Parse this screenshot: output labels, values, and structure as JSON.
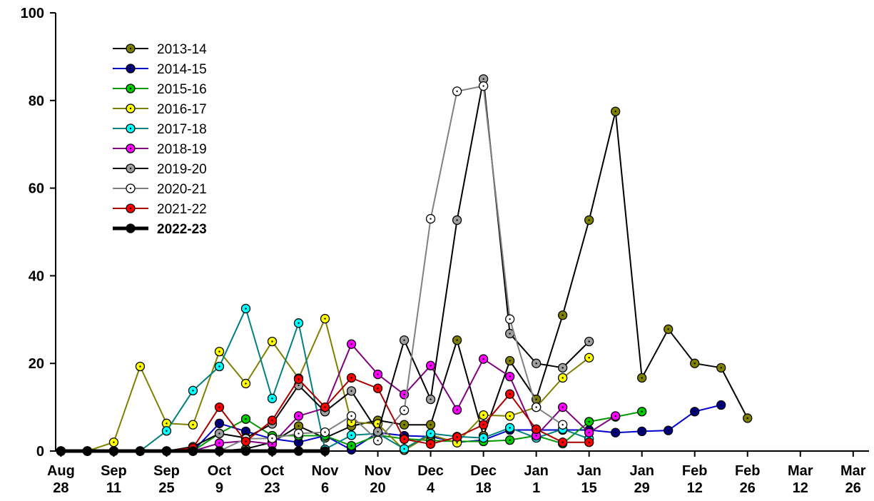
{
  "chart_data": {
    "type": "line",
    "title": "",
    "xlabel": "",
    "ylabel": "",
    "ylim": [
      0,
      100
    ],
    "y_ticks": [
      "0",
      "20",
      "40",
      "60",
      "80",
      "100"
    ],
    "x_ticks": [
      {
        "line1": "Aug",
        "line2": "28",
        "week": 0
      },
      {
        "line1": "Sep",
        "line2": "11",
        "week": 2
      },
      {
        "line1": "Sep",
        "line2": "25",
        "week": 4
      },
      {
        "line1": "Oct",
        "line2": "9",
        "week": 6
      },
      {
        "line1": "Oct",
        "line2": "23",
        "week": 8
      },
      {
        "line1": "Nov",
        "line2": "6",
        "week": 10
      },
      {
        "line1": "Nov",
        "line2": "20",
        "week": 12
      },
      {
        "line1": "Dec",
        "line2": "4",
        "week": 14
      },
      {
        "line1": "Dec",
        "line2": "18",
        "week": 16
      },
      {
        "line1": "Jan",
        "line2": "1",
        "week": 18
      },
      {
        "line1": "Jan",
        "line2": "15",
        "week": 20
      },
      {
        "line1": "Jan",
        "line2": "29",
        "week": 22
      },
      {
        "line1": "Feb",
        "line2": "12",
        "week": 24
      },
      {
        "line1": "Feb",
        "line2": "26",
        "week": 26
      },
      {
        "line1": "Mar",
        "line2": "12",
        "week": 28
      },
      {
        "line1": "Mar",
        "line2": "26",
        "week": 30
      }
    ],
    "x_range_weeks": [
      -0.2,
      30.6
    ],
    "grid": false,
    "legend_placement": "top-left",
    "series": [
      {
        "name": "2013-14",
        "line_color": "#000000",
        "marker_color": "#808000",
        "bold": false,
        "x": [
          0,
          1,
          2,
          3,
          4,
          5,
          6,
          7,
          8,
          9,
          10,
          11,
          12,
          13,
          14,
          15,
          16,
          17,
          18,
          19,
          20,
          21,
          22,
          23,
          24,
          25,
          26,
          27,
          28,
          29,
          30
        ],
        "y": [
          0,
          0,
          0,
          0,
          0,
          0,
          0,
          0.5,
          2,
          5.7,
          3,
          5.7,
          7,
          6,
          6,
          25.3,
          3.5,
          20.6,
          11.8,
          31,
          52.7,
          77.5,
          16.7,
          27.8,
          20,
          19,
          7.5,
          null,
          null,
          null,
          null
        ]
      },
      {
        "name": "2014-15",
        "line_color": "#0000cc",
        "marker_color": "#000080",
        "bold": false,
        "x": [
          0,
          1,
          2,
          3,
          4,
          5,
          6,
          7,
          8,
          9,
          10,
          11,
          12,
          13,
          14,
          15,
          16,
          17,
          18,
          19,
          20,
          21,
          22,
          23,
          24,
          25,
          26,
          27,
          28,
          29,
          30
        ],
        "y": [
          0,
          0,
          0,
          0,
          0,
          0,
          6.3,
          4.5,
          2.8,
          2,
          3.5,
          0.3,
          4.2,
          3.5,
          3.3,
          2,
          2.5,
          4.8,
          4.8,
          4.8,
          4.8,
          4.2,
          4.5,
          4.7,
          9,
          10.5,
          null,
          null,
          null,
          null,
          null
        ]
      },
      {
        "name": "2015-16",
        "line_color": "#009900",
        "marker_color": "#00cc00",
        "bold": false,
        "x": [
          0,
          1,
          2,
          3,
          4,
          5,
          6,
          7,
          8,
          9,
          10,
          11,
          12,
          13,
          14,
          15,
          16,
          17,
          18,
          19,
          20,
          21,
          22,
          23,
          24,
          25,
          26,
          27,
          28,
          29,
          30
        ],
        "y": [
          0,
          0,
          0,
          0,
          0,
          0,
          4,
          7.3,
          3.5,
          3.5,
          3.5,
          1.2,
          3.6,
          2.8,
          2.4,
          2.2,
          2.2,
          2.5,
          3.5,
          1.7,
          6.7,
          7.8,
          9,
          null,
          null,
          null,
          null,
          null,
          null,
          null,
          null
        ]
      },
      {
        "name": "2016-17",
        "line_color": "#808000",
        "marker_color": "#ffff00",
        "bold": false,
        "x": [
          0,
          1,
          2,
          3,
          4,
          5,
          6,
          7,
          8,
          9,
          10,
          11,
          12,
          13,
          14,
          15,
          16,
          17,
          18,
          19,
          20,
          21,
          22,
          23,
          24,
          25,
          26,
          27,
          28,
          29,
          30
        ],
        "y": [
          0,
          0,
          2,
          19.3,
          6.3,
          6,
          22.7,
          15.4,
          25,
          16.6,
          30.2,
          6.6,
          6.2,
          0.2,
          3.7,
          1.9,
          8.2,
          8,
          10,
          16.7,
          21.3,
          null,
          null,
          null,
          null,
          null,
          null,
          null,
          null,
          null,
          null
        ]
      },
      {
        "name": "2017-18",
        "line_color": "#008080",
        "marker_color": "#00ffff",
        "bold": false,
        "x": [
          0,
          1,
          2,
          3,
          4,
          5,
          6,
          7,
          8,
          9,
          10,
          11,
          12,
          13,
          14,
          15,
          16,
          17,
          18,
          19,
          20,
          21,
          22,
          23,
          24,
          25,
          26,
          27,
          28,
          29,
          30
        ],
        "y": [
          0,
          0,
          0,
          0,
          4.6,
          13.8,
          19.3,
          32.5,
          12,
          29.2,
          0.4,
          3.6,
          4,
          0.5,
          4,
          3.3,
          3,
          5.3,
          3,
          5,
          2.8,
          null,
          null,
          null,
          null,
          null,
          null,
          null,
          null,
          null,
          null
        ]
      },
      {
        "name": "2018-19",
        "line_color": "#800080",
        "marker_color": "#ff00ff",
        "bold": false,
        "x": [
          0,
          1,
          2,
          3,
          4,
          5,
          6,
          7,
          8,
          9,
          10,
          11,
          12,
          13,
          14,
          15,
          16,
          17,
          18,
          19,
          20,
          21,
          22,
          23,
          24,
          25,
          26,
          27,
          28,
          29,
          30
        ],
        "y": [
          0,
          0,
          0,
          0,
          0,
          0,
          1.8,
          2.3,
          1.6,
          8,
          9.8,
          24.4,
          17.5,
          12.9,
          19.5,
          9.4,
          21,
          17,
          3.5,
          10,
          4.2,
          8,
          null,
          null,
          null,
          null,
          null,
          null,
          null,
          null,
          null
        ]
      },
      {
        "name": "2019-20",
        "line_color": "#000000",
        "marker_color": "#a0a0a0",
        "bold": false,
        "x": [
          0,
          1,
          2,
          3,
          4,
          5,
          6,
          7,
          8,
          9,
          10,
          11,
          12,
          13,
          14,
          15,
          16,
          17,
          18,
          19,
          20,
          21,
          22,
          23,
          24,
          25,
          26,
          27,
          28,
          29,
          30
        ],
        "y": [
          0,
          0,
          0,
          0,
          0,
          1,
          4,
          3,
          6.2,
          15,
          9,
          13.7,
          4.4,
          25.3,
          11.8,
          52.7,
          84.9,
          26.8,
          20,
          19,
          25,
          null,
          null,
          null,
          null,
          null,
          null,
          null,
          null,
          null,
          null
        ]
      },
      {
        "name": "2020-21",
        "line_color": "#808080",
        "marker_color": "#ffffff",
        "bold": false,
        "x": [
          0,
          1,
          2,
          3,
          4,
          5,
          6,
          7,
          8,
          9,
          10,
          11,
          12,
          13,
          14,
          15,
          16,
          17,
          18,
          19,
          20,
          21,
          22,
          23,
          24,
          25,
          26,
          27,
          28,
          29,
          30
        ],
        "y": [
          0,
          0,
          0,
          0,
          0,
          0.2,
          0,
          2.8,
          2.9,
          4,
          4.3,
          8,
          2.4,
          9.3,
          53,
          82.1,
          83.3,
          30.1,
          10,
          6,
          null,
          null,
          null,
          null,
          null,
          null,
          null,
          null,
          null,
          null,
          null
        ]
      },
      {
        "name": "2021-22",
        "line_color": "#aa0000",
        "marker_color": "#ff0000",
        "bold": false,
        "x": [
          0,
          1,
          2,
          3,
          4,
          5,
          6,
          7,
          8,
          9,
          10,
          11,
          12,
          13,
          14,
          15,
          16,
          17,
          18,
          19,
          20,
          21,
          22,
          23,
          24,
          25,
          26,
          27,
          28,
          29,
          30
        ],
        "y": [
          0,
          0,
          0,
          0,
          0,
          0.7,
          10,
          2.2,
          7,
          16.4,
          10,
          16.7,
          14.3,
          2.7,
          1.6,
          3.2,
          6,
          13,
          5,
          2,
          2,
          null,
          null,
          null,
          null,
          null,
          null,
          null,
          null,
          null,
          null
        ]
      },
      {
        "name": "2022-23",
        "line_color": "#000000",
        "marker_color": "#000000",
        "bold": true,
        "x": [
          0,
          1,
          2,
          3,
          4,
          5,
          6,
          7,
          8,
          9,
          10,
          11,
          12,
          13,
          14,
          15,
          16,
          17,
          18,
          19,
          20,
          21,
          22,
          23,
          24,
          25,
          26,
          27,
          28,
          29,
          30
        ],
        "y": [
          0,
          0,
          0,
          0,
          0,
          0,
          0,
          0,
          0,
          0,
          0,
          null,
          null,
          null,
          null,
          null,
          null,
          null,
          null,
          null,
          null,
          null,
          null,
          null,
          null,
          null,
          null,
          null,
          null,
          null,
          null
        ]
      }
    ]
  }
}
